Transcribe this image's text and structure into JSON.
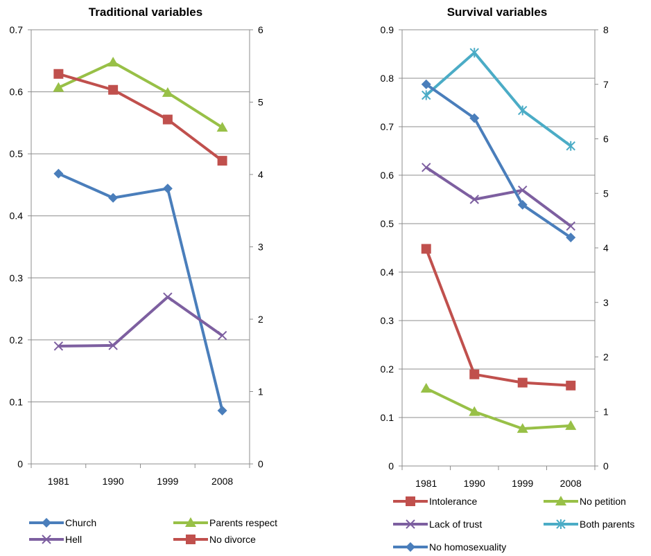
{
  "chart_data": [
    {
      "type": "line",
      "title": "Traditional variables",
      "categories": [
        "1981",
        "1990",
        "1999",
        "2008"
      ],
      "y_left": {
        "range": [
          0,
          0.7
        ],
        "ticks": [
          "0",
          "0.1",
          "0.2",
          "0.3",
          "0.4",
          "0.5",
          "0.6",
          "0.7"
        ]
      },
      "y_right": {
        "range": [
          0,
          6
        ],
        "ticks": [
          "0",
          "1",
          "2",
          "3",
          "4",
          "5",
          "6"
        ]
      },
      "grid": true,
      "legend_position": "bottom",
      "series": [
        {
          "name": "Church",
          "axis": "left",
          "color": "#4a7ebb",
          "marker": "diamond",
          "values": [
            0.468,
            0.429,
            0.444,
            0.086
          ]
        },
        {
          "name": "Hell",
          "axis": "left",
          "color": "#7d5fa0",
          "marker": "x",
          "values": [
            0.19,
            0.191,
            0.269,
            0.207
          ]
        },
        {
          "name": "Parents respect",
          "axis": "right",
          "color": "#98c047",
          "marker": "triangle",
          "values": [
            5.2,
            5.55,
            5.13,
            4.65
          ]
        },
        {
          "name": "No divorce",
          "axis": "right",
          "color": "#c0504d",
          "marker": "square",
          "values": [
            5.39,
            5.17,
            4.76,
            4.19
          ]
        }
      ],
      "legend_order": [
        "Church",
        "Parents respect",
        "Hell",
        "No divorce"
      ]
    },
    {
      "type": "line",
      "title": "Survival variables",
      "categories": [
        "1981",
        "1990",
        "1999",
        "2008"
      ],
      "y_left": {
        "range": [
          0,
          0.9
        ],
        "ticks": [
          "0",
          "0.1",
          "0.2",
          "0.3",
          "0.4",
          "0.5",
          "0.6",
          "0.7",
          "0.8",
          "0.9"
        ]
      },
      "y_right": {
        "range": [
          0,
          8
        ],
        "ticks": [
          "0",
          "1",
          "2",
          "3",
          "4",
          "5",
          "6",
          "7",
          "8"
        ]
      },
      "grid": true,
      "legend_position": "bottom",
      "series": [
        {
          "name": "Intolerance",
          "axis": "left",
          "color": "#c0504d",
          "marker": "square",
          "values": [
            0.448,
            0.189,
            0.172,
            0.166
          ]
        },
        {
          "name": "No petition",
          "axis": "left",
          "color": "#98c047",
          "marker": "triangle",
          "values": [
            0.16,
            0.112,
            0.077,
            0.083
          ]
        },
        {
          "name": "Lack of trust",
          "axis": "left",
          "color": "#7d5fa0",
          "marker": "x",
          "values": [
            0.616,
            0.55,
            0.569,
            0.495
          ]
        },
        {
          "name": "Both parents",
          "axis": "right",
          "color": "#4bacc6",
          "marker": "star",
          "values": [
            6.8,
            7.58,
            6.52,
            5.87
          ]
        },
        {
          "name": "No homosexuality",
          "axis": "right",
          "color": "#4a7ebb",
          "marker": "diamond",
          "values": [
            7.0,
            6.38,
            4.79,
            4.19
          ]
        }
      ],
      "legend_order": [
        "Intolerance",
        "No petition",
        "Lack of trust",
        "Both parents",
        "No homosexuality"
      ]
    }
  ]
}
